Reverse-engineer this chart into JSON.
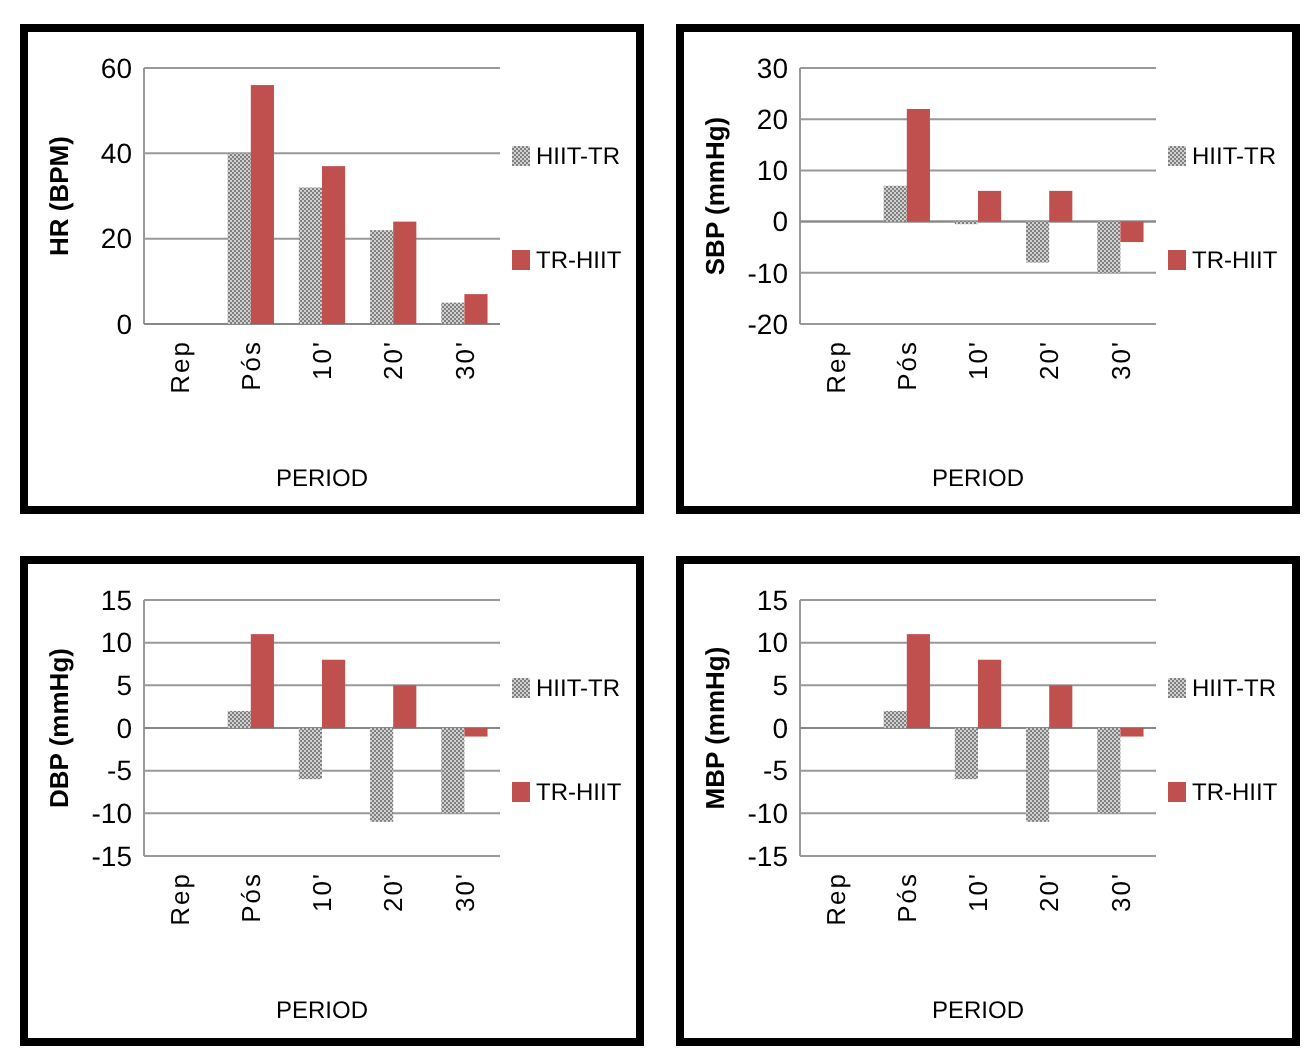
{
  "chart_data": [
    {
      "type": "bar",
      "ylabel": "HR (BPM)",
      "xlabel": "PERIOD",
      "categories": [
        "Rep",
        "Pós",
        "10'",
        "20'",
        "30'"
      ],
      "ylim": [
        0,
        60
      ],
      "yticks": [
        0,
        20,
        40,
        60
      ],
      "grid": "y",
      "legend": "right",
      "series": [
        {
          "name": "HIIT-TR",
          "color": "#808080",
          "values": [
            0,
            40,
            32,
            22,
            5
          ]
        },
        {
          "name": "TR-HIIT",
          "color": "#c0504d",
          "values": [
            0,
            56,
            37,
            24,
            7
          ]
        }
      ]
    },
    {
      "type": "bar",
      "ylabel": "SBP (mmHg)",
      "xlabel": "PERIOD",
      "categories": [
        "Rep",
        "Pós",
        "10'",
        "20'",
        "30'"
      ],
      "ylim": [
        -20,
        30
      ],
      "yticks": [
        -20,
        -10,
        0,
        10,
        20,
        30
      ],
      "grid": "y",
      "legend": "right",
      "series": [
        {
          "name": "HIIT-TR",
          "color": "#808080",
          "values": [
            0,
            7,
            -0.5,
            -8,
            -10
          ]
        },
        {
          "name": "TR-HIIT",
          "color": "#c0504d",
          "values": [
            0,
            22,
            6,
            6,
            -4
          ]
        }
      ]
    },
    {
      "type": "bar",
      "ylabel": "DBP (mmHg)",
      "xlabel": "PERIOD",
      "categories": [
        "Rep",
        "Pós",
        "10'",
        "20'",
        "30'"
      ],
      "ylim": [
        -15,
        15
      ],
      "yticks": [
        -15,
        -10,
        -5,
        0,
        5,
        10,
        15
      ],
      "grid": "y",
      "legend": "right",
      "series": [
        {
          "name": "HIIT-TR",
          "color": "#808080",
          "values": [
            0,
            2,
            -6,
            -11,
            -10
          ]
        },
        {
          "name": "TR-HIIT",
          "color": "#c0504d",
          "values": [
            0,
            11,
            8,
            5,
            -1
          ]
        }
      ]
    },
    {
      "type": "bar",
      "ylabel": "MBP (mmHg)",
      "xlabel": "PERIOD",
      "categories": [
        "Rep",
        "Pós",
        "10'",
        "20'",
        "30'"
      ],
      "ylim": [
        -15,
        15
      ],
      "yticks": [
        -15,
        -10,
        -5,
        0,
        5,
        10,
        15
      ],
      "grid": "y",
      "legend": "right",
      "series": [
        {
          "name": "HIIT-TR",
          "color": "#808080",
          "values": [
            0,
            2,
            -6,
            -11,
            -10
          ]
        },
        {
          "name": "TR-HIIT",
          "color": "#c0504d",
          "values": [
            0,
            11,
            8,
            5,
            -1
          ]
        }
      ]
    }
  ]
}
